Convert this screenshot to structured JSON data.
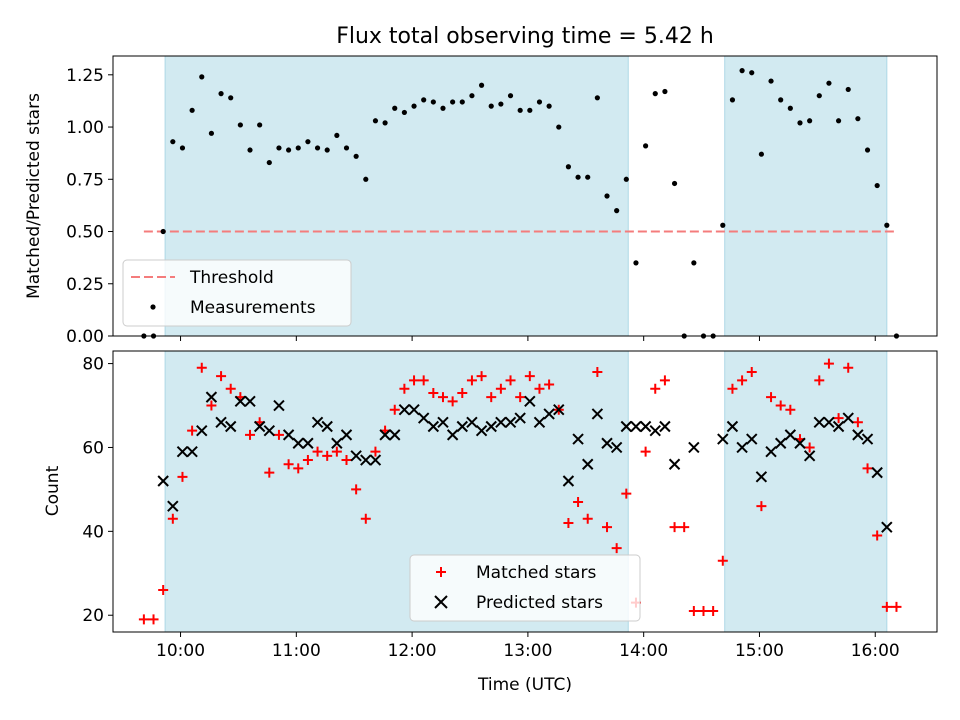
{
  "chart_data": [
    {
      "type": "scatter",
      "title": "Flux total observing time = 5.42 h",
      "xlabel": "",
      "ylabel": "Matched/Predicted stars",
      "xlim": [
        "09:25",
        "16:32"
      ],
      "ylim": [
        0,
        1.34
      ],
      "yticks": [
        "0.00",
        "0.25",
        "0.50",
        "0.75",
        "1.00",
        "1.25"
      ],
      "shaded_intervals": [
        [
          "09:52",
          "13:52"
        ],
        [
          "14:42",
          "16:06"
        ]
      ],
      "threshold": {
        "name": "Threshold",
        "value": 0.5,
        "x_range": [
          "09:41",
          "16:11"
        ],
        "color": "#f47c7c"
      },
      "series": [
        {
          "name": "Measurements",
          "color": "#000000",
          "points": [
            [
              "09:41",
              0.0
            ],
            [
              "09:46",
              0.0
            ],
            [
              "09:51",
              0.5
            ],
            [
              "09:56",
              0.93
            ],
            [
              "10:01",
              0.9
            ],
            [
              "10:06",
              1.08
            ],
            [
              "10:11",
              1.24
            ],
            [
              "10:16",
              0.97
            ],
            [
              "10:21",
              1.16
            ],
            [
              "10:26",
              1.14
            ],
            [
              "10:31",
              1.01
            ],
            [
              "10:36",
              0.89
            ],
            [
              "10:41",
              1.01
            ],
            [
              "10:46",
              0.83
            ],
            [
              "10:51",
              0.9
            ],
            [
              "10:56",
              0.89
            ],
            [
              "11:01",
              0.9
            ],
            [
              "11:06",
              0.93
            ],
            [
              "11:11",
              0.9
            ],
            [
              "11:16",
              0.89
            ],
            [
              "11:21",
              0.96
            ],
            [
              "11:26",
              0.9
            ],
            [
              "11:31",
              0.86
            ],
            [
              "11:36",
              0.75
            ],
            [
              "11:41",
              1.03
            ],
            [
              "11:46",
              1.02
            ],
            [
              "11:51",
              1.09
            ],
            [
              "11:56",
              1.07
            ],
            [
              "12:01",
              1.1
            ],
            [
              "12:06",
              1.13
            ],
            [
              "12:11",
              1.12
            ],
            [
              "12:16",
              1.09
            ],
            [
              "12:21",
              1.12
            ],
            [
              "12:26",
              1.12
            ],
            [
              "12:31",
              1.15
            ],
            [
              "12:36",
              1.2
            ],
            [
              "12:41",
              1.1
            ],
            [
              "12:46",
              1.11
            ],
            [
              "12:51",
              1.15
            ],
            [
              "12:56",
              1.08
            ],
            [
              "13:01",
              1.08
            ],
            [
              "13:06",
              1.12
            ],
            [
              "13:11",
              1.1
            ],
            [
              "13:16",
              1.0
            ],
            [
              "13:21",
              0.81
            ],
            [
              "13:26",
              0.76
            ],
            [
              "13:31",
              0.76
            ],
            [
              "13:36",
              1.14
            ],
            [
              "13:41",
              0.67
            ],
            [
              "13:46",
              0.6
            ],
            [
              "13:51",
              0.75
            ],
            [
              "13:56",
              0.35
            ],
            [
              "14:01",
              0.91
            ],
            [
              "14:06",
              1.16
            ],
            [
              "14:11",
              1.17
            ],
            [
              "14:16",
              0.73
            ],
            [
              "14:21",
              0.0
            ],
            [
              "14:26",
              0.35
            ],
            [
              "14:31",
              0.0
            ],
            [
              "14:36",
              0.0
            ],
            [
              "14:41",
              0.53
            ],
            [
              "14:46",
              1.13
            ],
            [
              "14:51",
              1.27
            ],
            [
              "14:56",
              1.26
            ],
            [
              "15:01",
              0.87
            ],
            [
              "15:06",
              1.22
            ],
            [
              "15:11",
              1.13
            ],
            [
              "15:16",
              1.09
            ],
            [
              "15:21",
              1.02
            ],
            [
              "15:26",
              1.03
            ],
            [
              "15:31",
              1.15
            ],
            [
              "15:36",
              1.21
            ],
            [
              "15:41",
              1.03
            ],
            [
              "15:46",
              1.18
            ],
            [
              "15:51",
              1.04
            ],
            [
              "15:56",
              0.89
            ],
            [
              "16:01",
              0.72
            ],
            [
              "16:06",
              0.53
            ],
            [
              "16:11",
              0.0
            ]
          ]
        }
      ],
      "legend": {
        "location": "lower-left",
        "entries": [
          "Threshold",
          "Measurements"
        ]
      }
    },
    {
      "type": "scatter",
      "title": "",
      "xlabel": "Time (UTC)",
      "ylabel": "Count",
      "xlim": [
        "09:25",
        "16:32"
      ],
      "ylim": [
        16,
        83
      ],
      "xticks": [
        "10:00",
        "11:00",
        "12:00",
        "13:00",
        "14:00",
        "15:00",
        "16:00"
      ],
      "yticks": [
        "20",
        "40",
        "60",
        "80"
      ],
      "shaded_intervals": [
        [
          "09:52",
          "13:52"
        ],
        [
          "14:42",
          "16:06"
        ]
      ],
      "series": [
        {
          "name": "Matched stars",
          "marker": "+",
          "color": "#ff0000",
          "points": [
            [
              "09:41",
              19
            ],
            [
              "09:46",
              19
            ],
            [
              "09:51",
              26
            ],
            [
              "09:56",
              43
            ],
            [
              "10:01",
              53
            ],
            [
              "10:06",
              64
            ],
            [
              "10:11",
              79
            ],
            [
              "10:16",
              70
            ],
            [
              "10:21",
              77
            ],
            [
              "10:26",
              74
            ],
            [
              "10:31",
              72
            ],
            [
              "10:36",
              63
            ],
            [
              "10:41",
              66
            ],
            [
              "10:46",
              54
            ],
            [
              "10:51",
              63
            ],
            [
              "10:56",
              56
            ],
            [
              "11:01",
              55
            ],
            [
              "11:06",
              57
            ],
            [
              "11:11",
              59
            ],
            [
              "11:16",
              58
            ],
            [
              "11:21",
              59
            ],
            [
              "11:26",
              57
            ],
            [
              "11:31",
              50
            ],
            [
              "11:36",
              43
            ],
            [
              "11:41",
              59
            ],
            [
              "11:46",
              64
            ],
            [
              "11:51",
              69
            ],
            [
              "11:56",
              74
            ],
            [
              "12:01",
              76
            ],
            [
              "12:06",
              76
            ],
            [
              "12:11",
              73
            ],
            [
              "12:16",
              72
            ],
            [
              "12:21",
              71
            ],
            [
              "12:26",
              73
            ],
            [
              "12:31",
              76
            ],
            [
              "12:36",
              77
            ],
            [
              "12:41",
              72
            ],
            [
              "12:46",
              74
            ],
            [
              "12:51",
              76
            ],
            [
              "12:56",
              72
            ],
            [
              "13:01",
              77
            ],
            [
              "13:06",
              74
            ],
            [
              "13:11",
              75
            ],
            [
              "13:16",
              69
            ],
            [
              "13:21",
              42
            ],
            [
              "13:26",
              47
            ],
            [
              "13:31",
              43
            ],
            [
              "13:36",
              78
            ],
            [
              "13:41",
              41
            ],
            [
              "13:46",
              36
            ],
            [
              "13:51",
              49
            ],
            [
              "13:56",
              23
            ],
            [
              "14:01",
              59
            ],
            [
              "14:06",
              74
            ],
            [
              "14:11",
              76
            ],
            [
              "14:16",
              41
            ],
            [
              "14:21",
              41
            ],
            [
              "14:26",
              21
            ],
            [
              "14:31",
              21
            ],
            [
              "14:36",
              21
            ],
            [
              "14:41",
              33
            ],
            [
              "14:46",
              74
            ],
            [
              "14:51",
              76
            ],
            [
              "14:56",
              78
            ],
            [
              "15:01",
              46
            ],
            [
              "15:06",
              72
            ],
            [
              "15:11",
              70
            ],
            [
              "15:16",
              69
            ],
            [
              "15:21",
              62
            ],
            [
              "15:26",
              60
            ],
            [
              "15:31",
              76
            ],
            [
              "15:36",
              80
            ],
            [
              "15:41",
              67
            ],
            [
              "15:46",
              79
            ],
            [
              "15:51",
              66
            ],
            [
              "15:56",
              55
            ],
            [
              "16:01",
              39
            ],
            [
              "16:06",
              22
            ],
            [
              "16:11",
              22
            ]
          ]
        },
        {
          "name": "Predicted stars",
          "marker": "x",
          "color": "#000000",
          "points": [
            [
              "09:51",
              52
            ],
            [
              "09:56",
              46
            ],
            [
              "10:01",
              59
            ],
            [
              "10:06",
              59
            ],
            [
              "10:11",
              64
            ],
            [
              "10:16",
              72
            ],
            [
              "10:21",
              66
            ],
            [
              "10:26",
              65
            ],
            [
              "10:31",
              71
            ],
            [
              "10:36",
              71
            ],
            [
              "10:41",
              65
            ],
            [
              "10:46",
              64
            ],
            [
              "10:51",
              70
            ],
            [
              "10:56",
              63
            ],
            [
              "11:01",
              61
            ],
            [
              "11:06",
              61
            ],
            [
              "11:11",
              66
            ],
            [
              "11:16",
              65
            ],
            [
              "11:21",
              61
            ],
            [
              "11:26",
              63
            ],
            [
              "11:31",
              58
            ],
            [
              "11:36",
              57
            ],
            [
              "11:41",
              57
            ],
            [
              "11:46",
              63
            ],
            [
              "11:51",
              63
            ],
            [
              "11:56",
              69
            ],
            [
              "12:01",
              69
            ],
            [
              "12:06",
              67
            ],
            [
              "12:11",
              65
            ],
            [
              "12:16",
              66
            ],
            [
              "12:21",
              63
            ],
            [
              "12:26",
              65
            ],
            [
              "12:31",
              66
            ],
            [
              "12:36",
              64
            ],
            [
              "12:41",
              65
            ],
            [
              "12:46",
              66
            ],
            [
              "12:51",
              66
            ],
            [
              "12:56",
              67
            ],
            [
              "13:01",
              71
            ],
            [
              "13:06",
              66
            ],
            [
              "13:11",
              68
            ],
            [
              "13:16",
              69
            ],
            [
              "13:21",
              52
            ],
            [
              "13:26",
              62
            ],
            [
              "13:31",
              56
            ],
            [
              "13:36",
              68
            ],
            [
              "13:41",
              61
            ],
            [
              "13:46",
              60
            ],
            [
              "13:51",
              65
            ],
            [
              "13:56",
              65
            ],
            [
              "14:01",
              65
            ],
            [
              "14:06",
              64
            ],
            [
              "14:11",
              65
            ],
            [
              "14:16",
              56
            ],
            [
              "14:26",
              60
            ],
            [
              "14:41",
              62
            ],
            [
              "14:46",
              65
            ],
            [
              "14:51",
              60
            ],
            [
              "14:56",
              62
            ],
            [
              "15:01",
              53
            ],
            [
              "15:06",
              59
            ],
            [
              "15:11",
              61
            ],
            [
              "15:16",
              63
            ],
            [
              "15:21",
              61
            ],
            [
              "15:26",
              58
            ],
            [
              "15:31",
              66
            ],
            [
              "15:36",
              66
            ],
            [
              "15:41",
              65
            ],
            [
              "15:46",
              67
            ],
            [
              "15:51",
              63
            ],
            [
              "15:56",
              62
            ],
            [
              "16:01",
              54
            ],
            [
              "16:06",
              41
            ]
          ]
        }
      ],
      "legend": {
        "location": "lower-center",
        "entries": [
          "Matched stars",
          "Predicted stars"
        ]
      }
    }
  ],
  "colors": {
    "shade": "#add8e6",
    "threshold": "#f47c7c",
    "matched": "#ff0000",
    "predicted": "#000000"
  }
}
